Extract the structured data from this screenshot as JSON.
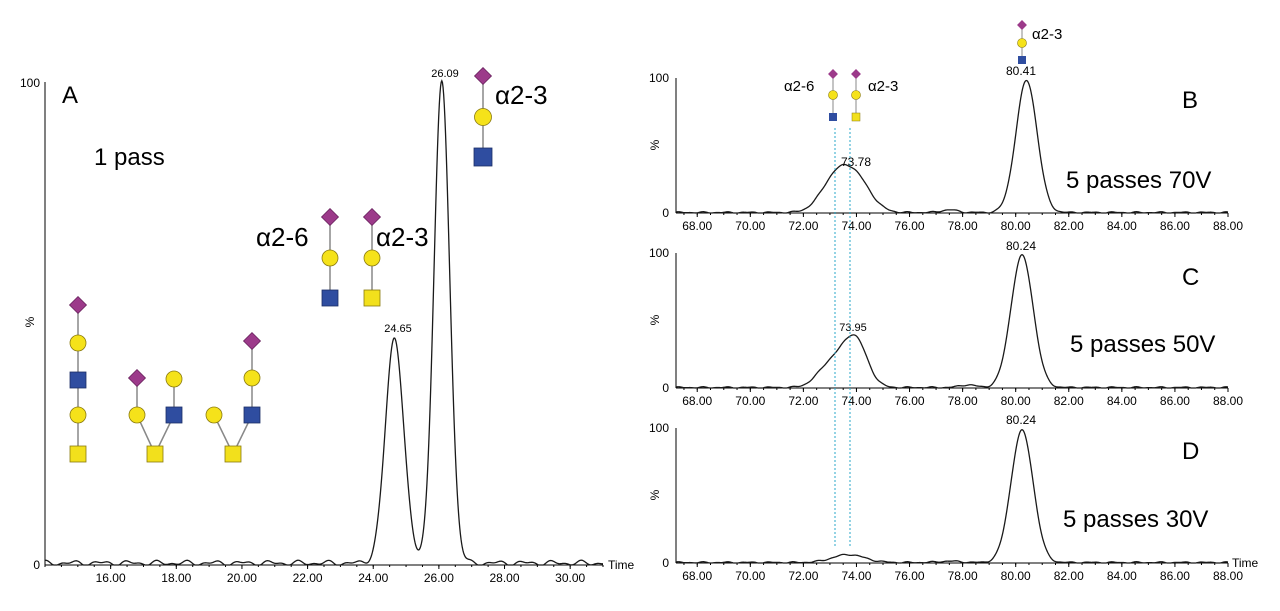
{
  "colors": {
    "galactose_circle": "#f5e21a",
    "galnac_square": "#f2e01c",
    "glcnac_square": "#2f4da0",
    "sialic_diamond": "#9c3a8a",
    "trace": "#1a1a1a",
    "guide_line": "#2aa7c9"
  },
  "chart_data": [
    {
      "id": "A",
      "type": "line",
      "panel_label": "A",
      "annotation": "1 pass",
      "xlabel": "Time",
      "ylabel": "%",
      "xlim": [
        14.0,
        31.0
      ],
      "ylim": [
        0,
        100
      ],
      "x_ticks": [
        "16.00",
        "18.00",
        "20.00",
        "22.00",
        "24.00",
        "26.00",
        "28.00",
        "30.00"
      ],
      "y_ticks": [
        "0",
        "100"
      ],
      "series": [
        {
          "peaks": [
            {
              "x": 24.65,
              "y": 47,
              "width": 0.28
            },
            {
              "x": 26.09,
              "y": 100,
              "width": 0.24
            }
          ]
        }
      ],
      "peak_labels": [
        "24.65",
        "26.09"
      ],
      "linkage_labels": [
        "α2-6",
        "α2-3",
        "α2-3"
      ]
    },
    {
      "id": "B",
      "type": "line",
      "panel_label": "B",
      "annotation": "5 passes 70V",
      "ylabel": "%",
      "xlim": [
        67.2,
        88.0
      ],
      "ylim": [
        0,
        100
      ],
      "x_ticks": [
        "68.00",
        "70.00",
        "72.00",
        "74.00",
        "76.00",
        "78.00",
        "80.00",
        "82.00",
        "84.00",
        "86.00",
        "88.00"
      ],
      "y_ticks": [
        "0",
        "100"
      ],
      "series": [
        {
          "peaks": [
            {
              "x": 73.2,
              "y": 24,
              "width": 0.55
            },
            {
              "x": 74.0,
              "y": 23,
              "width": 0.55
            },
            {
              "x": 77.5,
              "y": 2,
              "width": 0.3
            },
            {
              "x": 80.41,
              "y": 100,
              "width": 0.4
            }
          ]
        }
      ],
      "peak_labels": [
        "73.78",
        "80.41"
      ],
      "linkage_labels": [
        "α2-6",
        "α2-3",
        "α2-3"
      ]
    },
    {
      "id": "C",
      "type": "line",
      "panel_label": "C",
      "annotation": "5 passes 50V",
      "ylabel": "%",
      "xlim": [
        67.2,
        88.0
      ],
      "ylim": [
        0,
        100
      ],
      "x_ticks": [
        "68.00",
        "70.00",
        "72.00",
        "74.00",
        "76.00",
        "78.00",
        "80.00",
        "82.00",
        "84.00",
        "86.00",
        "88.00"
      ],
      "y_ticks": [
        "0",
        "100"
      ],
      "series": [
        {
          "peaks": [
            {
              "x": 73.05,
              "y": 18,
              "width": 0.5
            },
            {
              "x": 73.95,
              "y": 36,
              "width": 0.45
            },
            {
              "x": 78.2,
              "y": 2,
              "width": 0.3
            },
            {
              "x": 80.24,
              "y": 100,
              "width": 0.42
            }
          ]
        }
      ],
      "peak_labels": [
        "73.95",
        "80.24"
      ]
    },
    {
      "id": "D",
      "type": "line",
      "panel_label": "D",
      "annotation": "5 passes 30V",
      "xlabel": "Time",
      "ylabel": "%",
      "xlim": [
        67.2,
        88.0
      ],
      "ylim": [
        0,
        100
      ],
      "x_ticks": [
        "68.00",
        "70.00",
        "72.00",
        "74.00",
        "76.00",
        "78.00",
        "80.00",
        "82.00",
        "84.00",
        "86.00",
        "88.00"
      ],
      "y_ticks": [
        "0",
        "100"
      ],
      "series": [
        {
          "peaks": [
            {
              "x": 73.7,
              "y": 6,
              "width": 0.6
            },
            {
              "x": 77.5,
              "y": 1,
              "width": 0.4
            },
            {
              "x": 80.24,
              "y": 100,
              "width": 0.42
            }
          ]
        }
      ],
      "peak_labels": [
        "80.24"
      ]
    }
  ]
}
